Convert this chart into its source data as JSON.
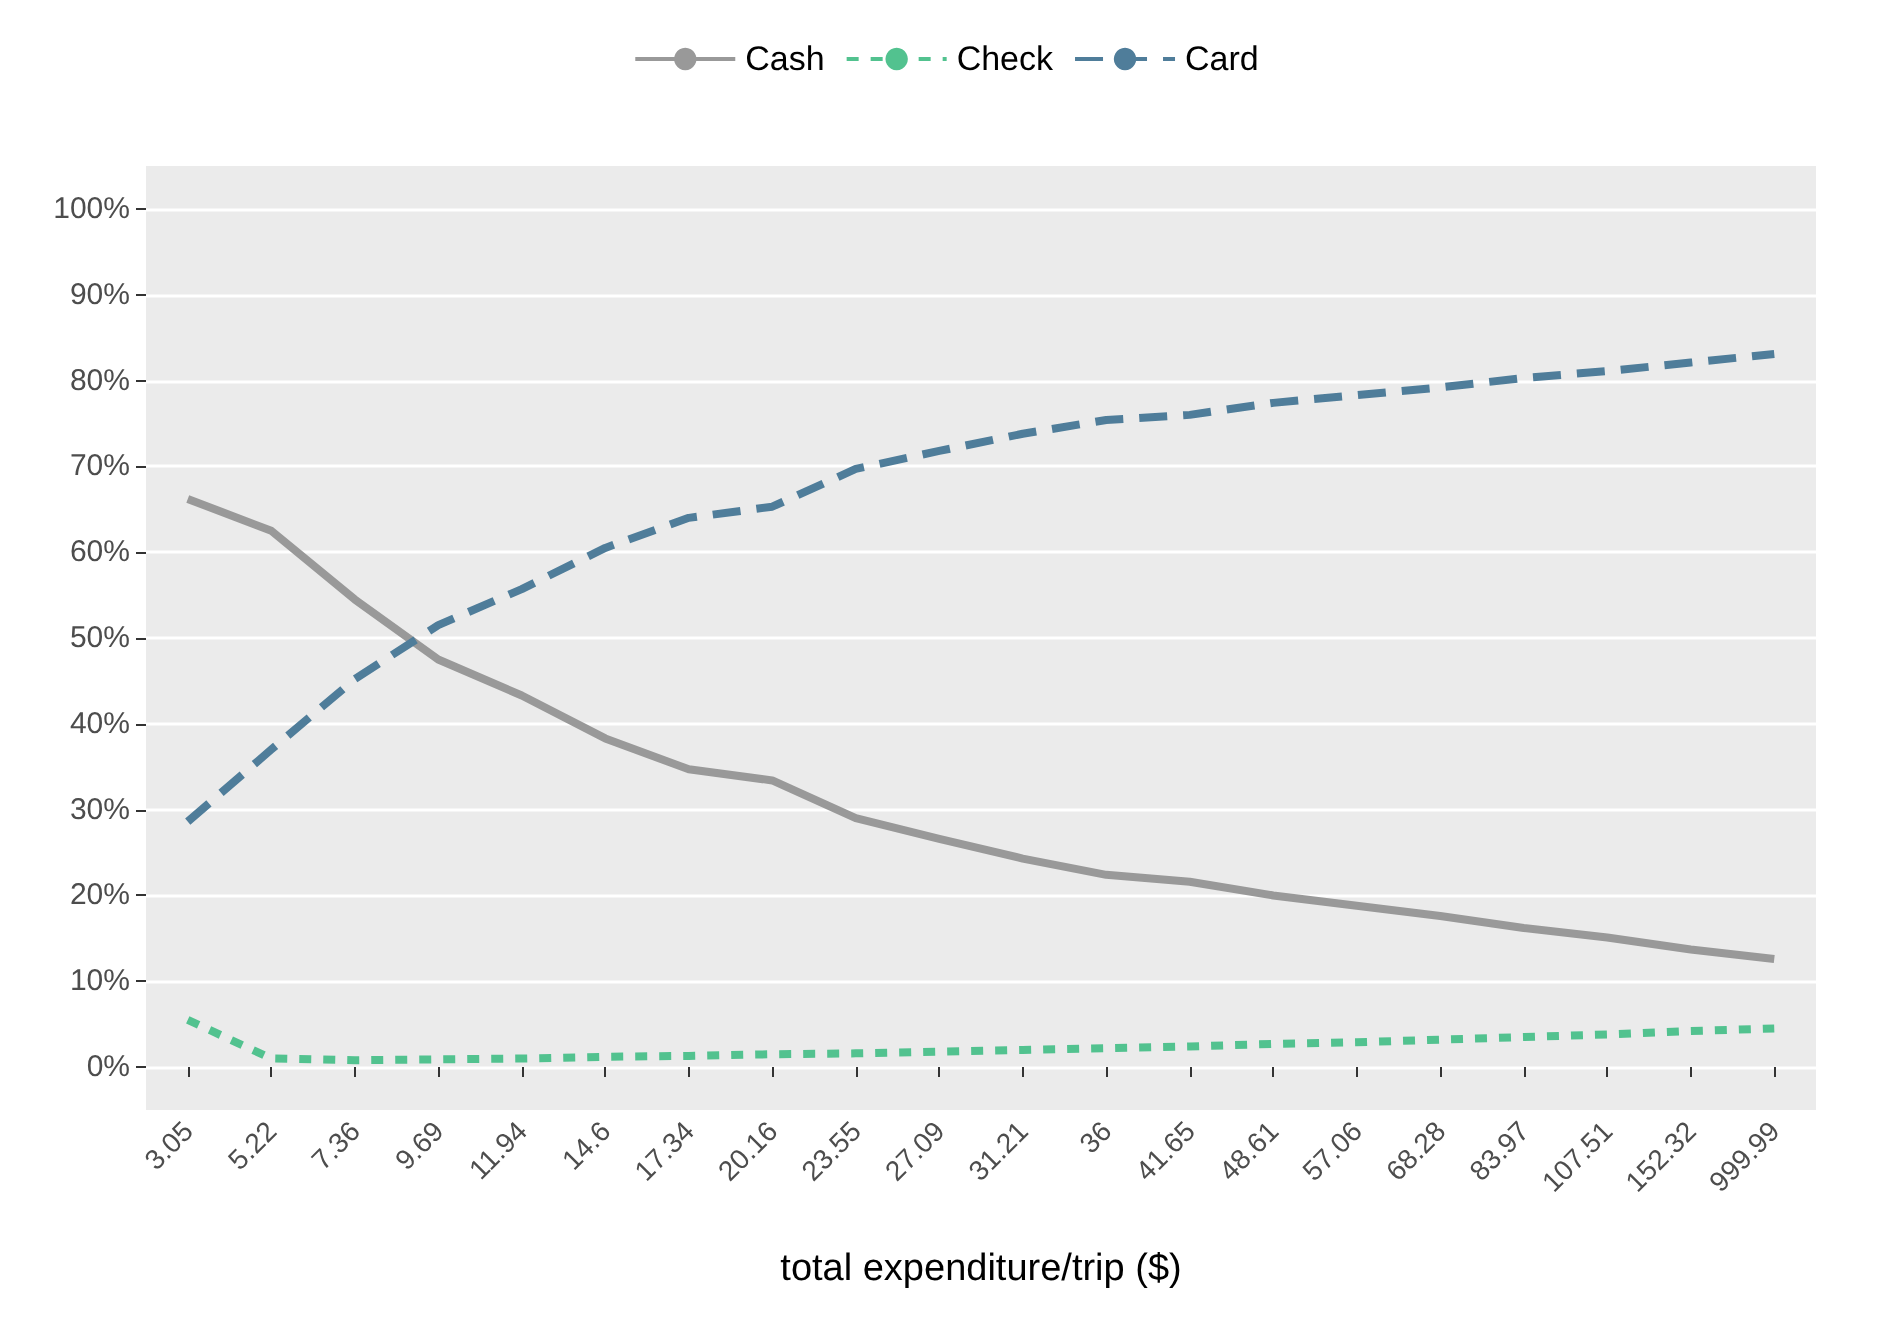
{
  "chart_data": {
    "type": "line",
    "xlabel": "total expenditure/trip ($)",
    "categories": [
      "3.05",
      "5.22",
      "7.36",
      "9.69",
      "11.94",
      "14.6",
      "17.34",
      "20.16",
      "23.55",
      "27.09",
      "31.21",
      "36",
      "41.65",
      "48.61",
      "57.06",
      "68.28",
      "83.97",
      "107.51",
      "152.32",
      "999.99"
    ],
    "series": [
      {
        "name": "Cash",
        "color": "#999999",
        "line_style": "solid",
        "values": [
          66.2,
          62.5,
          54.5,
          47.5,
          43.3,
          38.3,
          34.7,
          33.4,
          29,
          26.6,
          24.3,
          22.4,
          21.6,
          20,
          18.8,
          17.6,
          16.2,
          15.1,
          13.7,
          12.6
        ]
      },
      {
        "name": "Check",
        "color": "#52c28f",
        "line_style": "dotted",
        "values": [
          5.5,
          1,
          0.8,
          0.9,
          1,
          1.2,
          1.3,
          1.5,
          1.6,
          1.8,
          2,
          2.2,
          2.4,
          2.7,
          2.9,
          3.2,
          3.5,
          3.8,
          4.2,
          4.5
        ]
      },
      {
        "name": "Card",
        "color": "#4f7d9a",
        "line_style": "dashed",
        "values": [
          28.6,
          37,
          45.2,
          51.5,
          55.7,
          60.5,
          64,
          65.3,
          69.7,
          71.8,
          73.8,
          75.4,
          76,
          77.4,
          78.3,
          79.2,
          80.3,
          81.1,
          82.1,
          83.1
        ]
      }
    ],
    "ylim": [
      -5,
      105
    ],
    "yticks": [
      {
        "value": 0,
        "label": "0%"
      },
      {
        "value": 10,
        "label": "10%"
      },
      {
        "value": 20,
        "label": "20%"
      },
      {
        "value": 30,
        "label": "30%"
      },
      {
        "value": 40,
        "label": "40%"
      },
      {
        "value": 50,
        "label": "50%"
      },
      {
        "value": 60,
        "label": "60%"
      },
      {
        "value": 70,
        "label": "70%"
      },
      {
        "value": 80,
        "label": "80%"
      },
      {
        "value": 90,
        "label": "90%"
      },
      {
        "value": 100,
        "label": "100%"
      }
    ],
    "grid": "y",
    "legend": "top",
    "marker": "none"
  }
}
